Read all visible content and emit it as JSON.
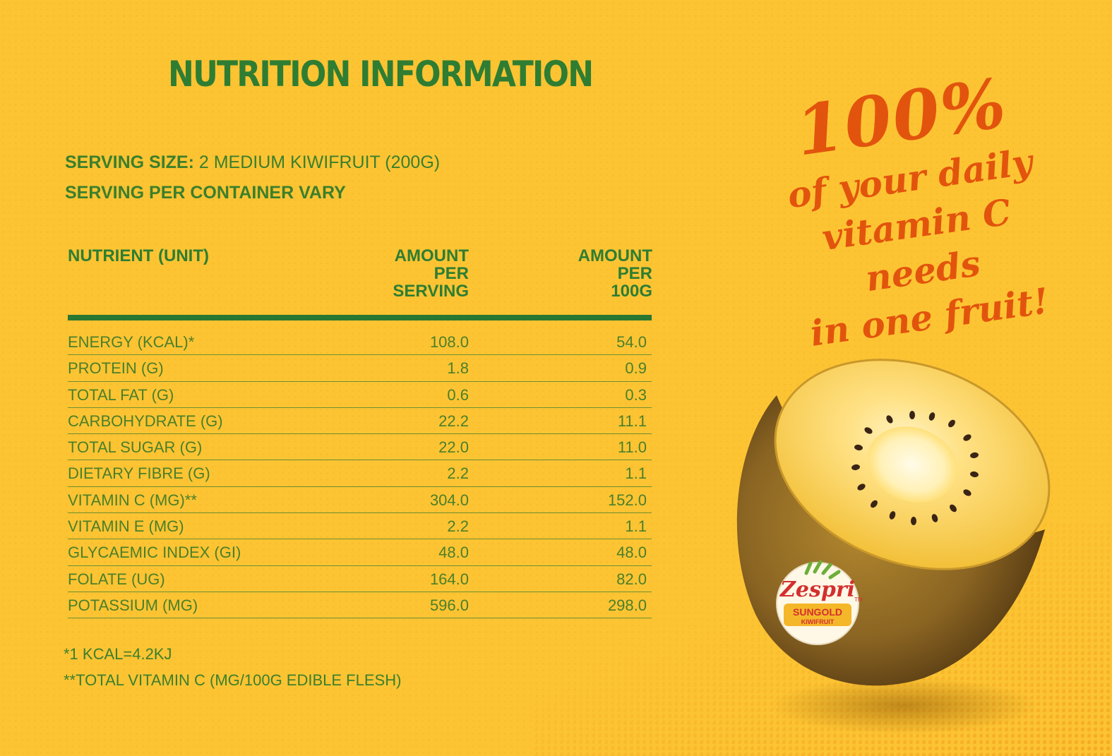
{
  "title": "NUTRITION INFORMATION",
  "serving": {
    "size_label": "SERVING SIZE:",
    "size_value": " 2 MEDIUM KIWIFRUIT (200G)",
    "per_container": "SERVING PER CONTAINER VARY"
  },
  "table": {
    "headers": {
      "nutrient": "NUTRIENT (UNIT)",
      "per_serving": [
        "AMOUNT",
        "PER",
        "SERVING"
      ],
      "per_100g": [
        "AMOUNT",
        "PER",
        "100G"
      ]
    },
    "rows": [
      {
        "name": "ENERGY (KCAL)*",
        "per_serving": "108.0",
        "per_100g": "54.0"
      },
      {
        "name": "PROTEIN (G)",
        "per_serving": "1.8",
        "per_100g": "0.9"
      },
      {
        "name": "TOTAL FAT (G)",
        "per_serving": "0.6",
        "per_100g": "0.3"
      },
      {
        "name": "CARBOHYDRATE (G)",
        "per_serving": "22.2",
        "per_100g": "11.1"
      },
      {
        "name": "TOTAL SUGAR (G)",
        "per_serving": "22.0",
        "per_100g": "11.0"
      },
      {
        "name": "DIETARY FIBRE (G)",
        "per_serving": "2.2",
        "per_100g": "1.1"
      },
      {
        "name": "VITAMIN C (MG)**",
        "per_serving": "304.0",
        "per_100g": "152.0"
      },
      {
        "name": "VITAMIN E (MG)",
        "per_serving": "2.2",
        "per_100g": "1.1"
      },
      {
        "name": "GLYCAEMIC INDEX (GI)",
        "per_serving": "48.0",
        "per_100g": "48.0"
      },
      {
        "name": "FOLATE (UG)",
        "per_serving": "164.0",
        "per_100g": "82.0"
      },
      {
        "name": "POTASSIUM (MG)",
        "per_serving": "596.0",
        "per_100g": "298.0"
      }
    ]
  },
  "notes": [
    "*1 KCAL=4.2KJ",
    "**TOTAL VITAMIN C  (MG/100G EDIBLE FLESH)"
  ],
  "tagline": {
    "big": "100%",
    "lines": [
      "of your daily",
      "vitamin C needs",
      "in one fruit!"
    ]
  },
  "sticker": {
    "brand": "Zespri",
    "tm": "TM",
    "product": "SUNGOLD",
    "sub": "KIWIFRUIT"
  },
  "colors": {
    "background": "#fcc433",
    "heading_green": "#2e7d32",
    "text_green": "#4a7f2a",
    "tagline_orange": "#e2540d",
    "sticker_red": "#d32f2f"
  }
}
